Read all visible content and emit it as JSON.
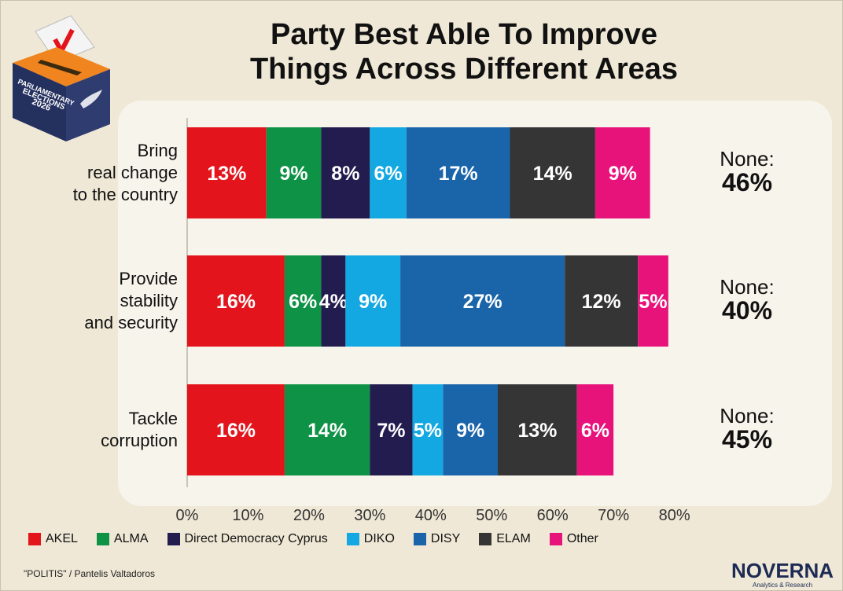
{
  "title_line1": "Party Best Able To Improve",
  "title_line2": "Things Across Different Areas",
  "badge": {
    "line1": "PARLIAMENTARY",
    "line2": "ELECTIONS",
    "line3": "2026"
  },
  "source": "\"POLITIS\" / Pantelis Valtadoros",
  "brand": {
    "name": "NOVERNA",
    "tagline": "Analytics & Research"
  },
  "none_label": "None:",
  "chart_data": {
    "type": "bar",
    "orientation": "horizontal",
    "stacked": true,
    "title": "Party Best Able To Improve Things Across Different Areas",
    "categories": [
      "Bring real change to the country",
      "Provide stability and security",
      "Tackle corruption"
    ],
    "category_lines": [
      [
        "Bring",
        "real change",
        "to the country"
      ],
      [
        "Provide",
        "stability",
        "and security"
      ],
      [
        "Tackle",
        "corruption"
      ]
    ],
    "series": [
      {
        "name": "AKEL",
        "color": "#e3141b",
        "values": [
          13,
          16,
          16
        ]
      },
      {
        "name": "ALMA",
        "color": "#0e9245",
        "values": [
          9,
          6,
          14
        ]
      },
      {
        "name": "Direct Democracy Cyprus",
        "color": "#231c4f",
        "values": [
          8,
          4,
          7
        ]
      },
      {
        "name": "DIKO",
        "color": "#13a8e2",
        "values": [
          6,
          9,
          5
        ]
      },
      {
        "name": "DISY",
        "color": "#1a64aa",
        "values": [
          17,
          27,
          9
        ]
      },
      {
        "name": "ELAM",
        "color": "#353535",
        "values": [
          14,
          12,
          13
        ]
      },
      {
        "name": "Other",
        "color": "#e7137b",
        "values": [
          9,
          5,
          6
        ]
      }
    ],
    "none": [
      "46%",
      "40%",
      "45%"
    ],
    "xlim": [
      0,
      80
    ],
    "xticks": [
      "0%",
      "10%",
      "20%",
      "30%",
      "40%",
      "50%",
      "60%",
      "70%",
      "80%"
    ],
    "legend": "bottom"
  }
}
